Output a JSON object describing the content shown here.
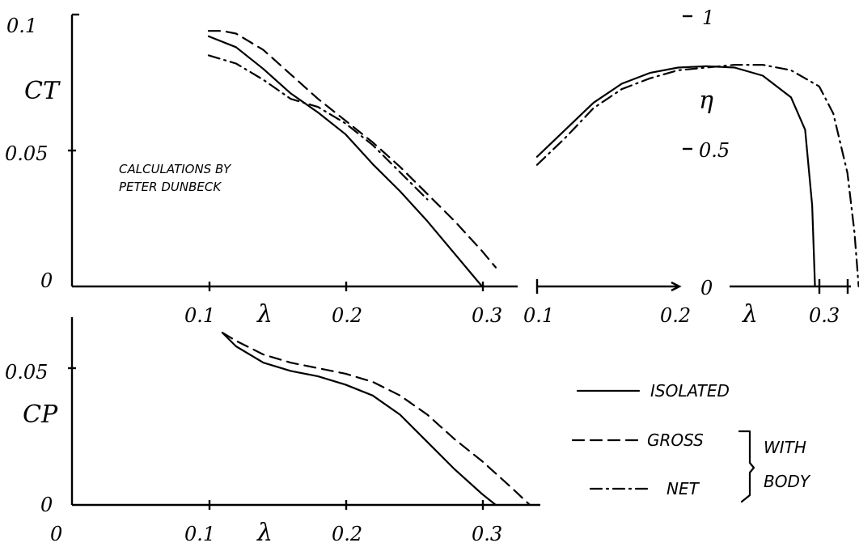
{
  "chart_data": [
    {
      "type": "line",
      "id": "thrust",
      "xlabel": "λ",
      "ylabel": "CT",
      "xlim": [
        0,
        0.32
      ],
      "ylim": [
        0,
        0.1
      ],
      "xticks": [
        "0.1",
        "0.2",
        "0.3"
      ],
      "yticks": [
        "0",
        "0.05",
        "0.1"
      ],
      "annotation": [
        "CALCULATIONS BY",
        "PETER DUNBECK"
      ],
      "series": [
        {
          "name": "ISOLATED",
          "style": "solid",
          "x": [
            0.1,
            0.12,
            0.14,
            0.16,
            0.18,
            0.2,
            0.22,
            0.24,
            0.26,
            0.28,
            0.3
          ],
          "y": [
            0.092,
            0.088,
            0.08,
            0.071,
            0.064,
            0.056,
            0.045,
            0.035,
            0.024,
            0.012,
            0.0
          ]
        },
        {
          "name": "GROSS",
          "style": "dashed",
          "x": [
            0.1,
            0.11,
            0.12,
            0.14,
            0.16,
            0.18,
            0.2,
            0.22,
            0.24,
            0.26,
            0.28,
            0.3,
            0.31
          ],
          "y": [
            0.094,
            0.094,
            0.093,
            0.087,
            0.078,
            0.069,
            0.061,
            0.053,
            0.044,
            0.034,
            0.024,
            0.013,
            0.007
          ]
        },
        {
          "name": "NET",
          "style": "dashdot",
          "x": [
            0.1,
            0.12,
            0.14,
            0.16,
            0.18,
            0.2,
            0.22,
            0.24,
            0.26
          ],
          "y": [
            0.085,
            0.082,
            0.076,
            0.069,
            0.066,
            0.06,
            0.052,
            0.042,
            0.032
          ]
        }
      ]
    },
    {
      "type": "line",
      "id": "efficiency",
      "xlabel": "λ",
      "ylabel": "η",
      "xlim": [
        0.1,
        0.33
      ],
      "ylim": [
        0,
        1
      ],
      "xticks": [
        "0.1",
        "0.2",
        "0.3"
      ],
      "yticks": [
        "0",
        "0.5",
        "1"
      ],
      "series": [
        {
          "name": "ISOLATED",
          "style": "solid",
          "x": [
            0.1,
            0.12,
            0.14,
            0.16,
            0.18,
            0.2,
            0.22,
            0.24,
            0.26,
            0.28,
            0.29,
            0.295,
            0.297
          ],
          "y": [
            0.48,
            0.58,
            0.68,
            0.75,
            0.79,
            0.81,
            0.815,
            0.81,
            0.78,
            0.7,
            0.58,
            0.3,
            0.0
          ]
        },
        {
          "name": "NET",
          "style": "dashdot",
          "x": [
            0.1,
            0.12,
            0.14,
            0.16,
            0.18,
            0.2,
            0.22,
            0.24,
            0.26,
            0.28,
            0.3,
            0.31,
            0.32,
            0.325,
            0.328
          ],
          "y": [
            0.45,
            0.55,
            0.66,
            0.73,
            0.77,
            0.8,
            0.81,
            0.82,
            0.82,
            0.8,
            0.74,
            0.64,
            0.42,
            0.2,
            0.0
          ]
        }
      ]
    },
    {
      "type": "line",
      "id": "power",
      "xlabel": "λ",
      "ylabel": "CP",
      "xlim": [
        0,
        0.34
      ],
      "ylim": [
        0,
        0.06
      ],
      "xticks": [
        "0",
        "0.1",
        "0.2",
        "0.3"
      ],
      "yticks": [
        "0",
        "0.05"
      ],
      "series": [
        {
          "name": "ISOLATED",
          "style": "solid",
          "x": [
            0.11,
            0.12,
            0.14,
            0.16,
            0.18,
            0.2,
            0.22,
            0.24,
            0.26,
            0.28,
            0.3,
            0.31
          ],
          "y": [
            0.063,
            0.058,
            0.052,
            0.049,
            0.047,
            0.044,
            0.04,
            0.033,
            0.023,
            0.013,
            0.004,
            0.0
          ]
        },
        {
          "name": "GROSS",
          "style": "dashed",
          "x": [
            0.11,
            0.12,
            0.14,
            0.16,
            0.18,
            0.2,
            0.22,
            0.24,
            0.26,
            0.28,
            0.3,
            0.32,
            0.335
          ],
          "y": [
            0.063,
            0.06,
            0.055,
            0.052,
            0.05,
            0.048,
            0.045,
            0.04,
            0.033,
            0.024,
            0.016,
            0.007,
            0.0
          ]
        }
      ]
    }
  ],
  "legend": {
    "items": [
      {
        "label": "ISOLATED",
        "style": "solid"
      },
      {
        "label": "GROSS",
        "style": "dashed"
      },
      {
        "label": "NET",
        "style": "dashdot"
      }
    ],
    "group_label": [
      "WITH",
      "BODY"
    ]
  }
}
